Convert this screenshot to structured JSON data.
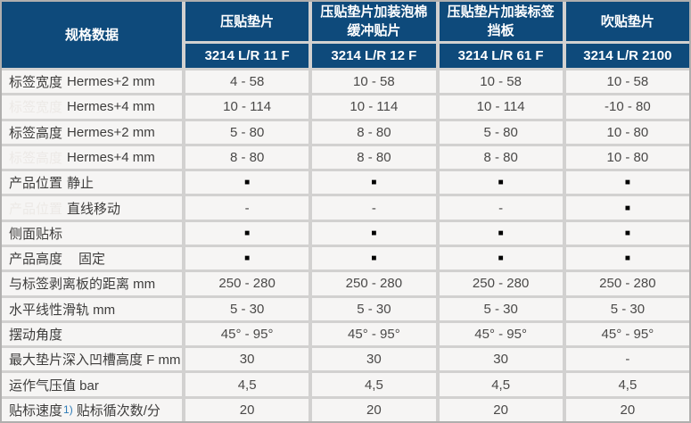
{
  "table": {
    "corner_header": "规格数据",
    "columns": [
      {
        "product": "压贴垫片",
        "model": "3214 L/R 11 F"
      },
      {
        "product": "压贴垫片加装泡棉缓冲贴片",
        "model": "3214 L/R 12 F"
      },
      {
        "product": "压贴垫片加装标签挡板",
        "model": "3214 L/R 61 F"
      },
      {
        "product": "吹贴垫片",
        "model": "3214 L/R 2100"
      }
    ],
    "rows": [
      {
        "label": "标签宽度",
        "ghost": false,
        "sub": "Hermes+2 mm",
        "values": [
          "4 - 58",
          "10 - 58",
          "10 - 58",
          "10 - 58"
        ]
      },
      {
        "label": "标签宽度",
        "ghost": true,
        "sub": "Hermes+4 mm",
        "values": [
          "10 - 114",
          "10 - 114",
          "10 - 114",
          "-10 - 80"
        ]
      },
      {
        "label": "标签高度",
        "ghost": false,
        "sub": "Hermes+2 mm",
        "values": [
          "5 - 80",
          "8 - 80",
          "5 - 80",
          "10 - 80"
        ]
      },
      {
        "label": "标签高度",
        "ghost": true,
        "sub": "Hermes+4 mm",
        "values": [
          "8 - 80",
          "8 - 80",
          "8 - 80",
          "10 - 80"
        ]
      },
      {
        "label": "产品位置",
        "ghost": false,
        "sub": "静止",
        "values": [
          "■",
          "■",
          "■",
          "■"
        ]
      },
      {
        "label": "产品位置",
        "ghost": true,
        "sub": "直线移动",
        "values": [
          "-",
          "-",
          "-",
          "■"
        ]
      },
      {
        "label": "侧面贴标",
        "values": [
          "■",
          "■",
          "■",
          "■"
        ]
      },
      {
        "label": "产品高度",
        "sub": "固定",
        "wide": true,
        "values": [
          "■",
          "■",
          "■",
          "■"
        ]
      },
      {
        "label": "与标签剥离板的距离 mm",
        "values": [
          "250 - 280",
          "250 - 280",
          "250 - 280",
          "250 - 280"
        ]
      },
      {
        "label": "水平线性滑轨 mm",
        "values": [
          "5 - 30",
          "5 - 30",
          "5 - 30",
          "5 - 30"
        ]
      },
      {
        "label": "摆动角度",
        "values": [
          "45° - 95°",
          "45° - 95°",
          "45° - 95°",
          "45° - 95°"
        ]
      },
      {
        "label": "最大垫片深入凹槽高度 F mm",
        "values": [
          "30",
          "30",
          "30",
          "-"
        ]
      },
      {
        "label": "运作气压值 bar",
        "values": [
          "4,5",
          "4,5",
          "4,5",
          "4,5"
        ]
      },
      {
        "label": "贴标速度",
        "sup": "1)",
        "label_after": "贴标循次数/分",
        "values": [
          "20",
          "20",
          "20",
          "20"
        ]
      }
    ]
  },
  "colors": {
    "header_bg": "#0e4a7b",
    "header_text": "#ffffff",
    "cell_bg": "#f6f5f4",
    "grid_line": "#d2d1d0",
    "label_text": "#3e3d3c",
    "value_text": "#4a4948",
    "ghost_text": "#ece9e6",
    "footnote_blue": "#2e7cb8",
    "marker": "#000000"
  }
}
